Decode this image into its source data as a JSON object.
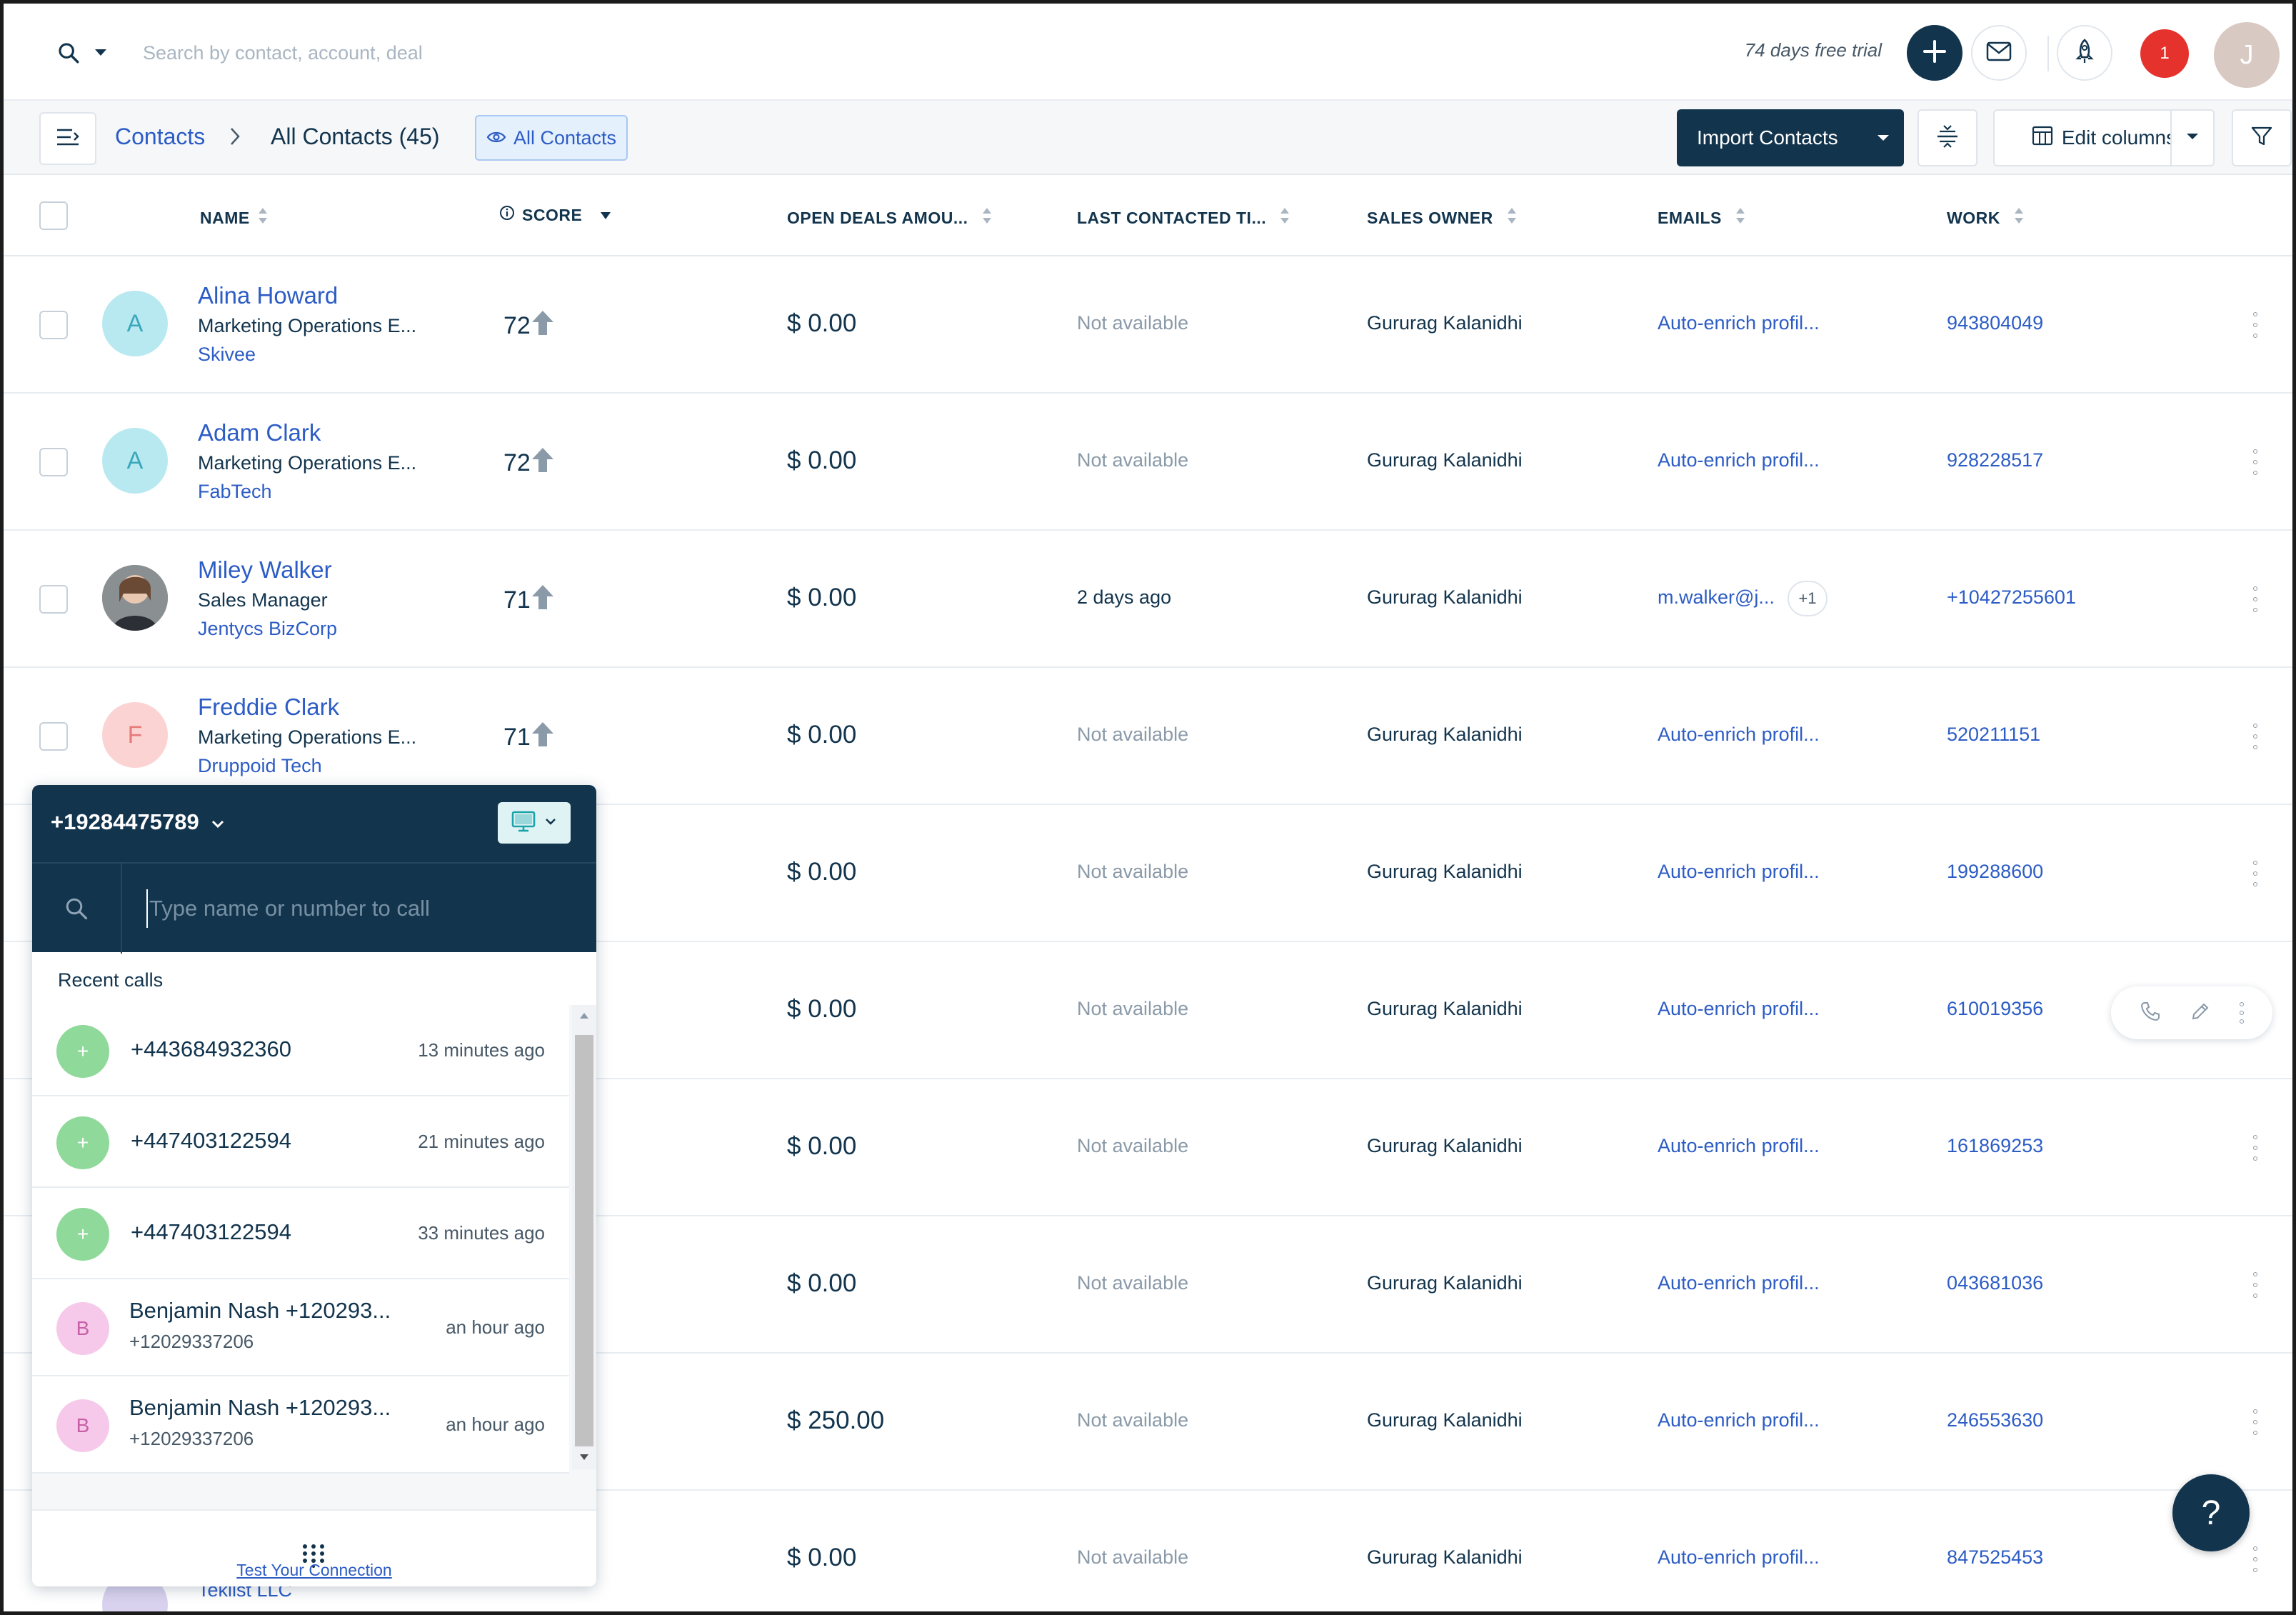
{
  "topbar": {
    "search_placeholder": "Search by contact, account, deal",
    "trial_text": "74 days free trial",
    "notification_count": "1",
    "user_initial": "J"
  },
  "toolbar": {
    "breadcrumb_root": "Contacts",
    "breadcrumb_current": "All Contacts (45)",
    "view_chip": "All Contacts",
    "import_label": "Import Contacts",
    "edit_columns_label": "Edit columns"
  },
  "table": {
    "columns": [
      "NAME",
      "SCORE",
      "OPEN DEALS AMOU...",
      "LAST CONTACTED TI...",
      "SALES OWNER",
      "EMAILS",
      "WORK"
    ],
    "rows": [
      {
        "initial": "A",
        "name": "Alina Howard",
        "title": "Marketing Operations E...",
        "company": "Skivee",
        "score": "72",
        "amount": "$ 0.00",
        "last_contacted": "Not available",
        "owner": "Gururag Kalanidhi",
        "email": "Auto-enrich profil...",
        "work": "943804049"
      },
      {
        "initial": "A",
        "name": "Adam Clark",
        "title": "Marketing Operations E...",
        "company": "FabTech",
        "score": "72",
        "amount": "$ 0.00",
        "last_contacted": "Not available",
        "owner": "Gururag Kalanidhi",
        "email": "Auto-enrich profil...",
        "work": "928228517"
      },
      {
        "initial": "",
        "name": "Miley Walker",
        "title": "Sales Manager",
        "company": "Jentycs BizCorp",
        "score": "71",
        "amount": "$ 0.00",
        "last_contacted": "2 days ago",
        "owner": "Gururag Kalanidhi",
        "email": "m.walker@j...",
        "email_extra": "+1",
        "work": "+10427255601"
      },
      {
        "initial": "F",
        "name": "Freddie Clark",
        "title": "Marketing Operations E...",
        "company": "Druppoid Tech",
        "score": "71",
        "amount": "$ 0.00",
        "last_contacted": "Not available",
        "owner": "Gururag Kalanidhi",
        "email": "Auto-enrich profil...",
        "work": "520211151"
      },
      {
        "amount": "$ 0.00",
        "last_contacted": "Not available",
        "owner": "Gururag Kalanidhi",
        "email": "Auto-enrich profil...",
        "work": "199288600"
      },
      {
        "amount": "$ 0.00",
        "last_contacted": "Not available",
        "owner": "Gururag Kalanidhi",
        "email": "Auto-enrich profil...",
        "work": "610019356"
      },
      {
        "amount": "$ 0.00",
        "last_contacted": "Not available",
        "owner": "Gururag Kalanidhi",
        "email": "Auto-enrich profil...",
        "work": "161869253"
      },
      {
        "amount": "$ 0.00",
        "last_contacted": "Not available",
        "owner": "Gururag Kalanidhi",
        "email": "Auto-enrich profil...",
        "work": "043681036"
      },
      {
        "amount": "$ 250.00",
        "last_contacted": "Not available",
        "owner": "Gururag Kalanidhi",
        "email": "Auto-enrich profil...",
        "work": "246553630"
      },
      {
        "company": "Teklist LLC",
        "amount": "$ 0.00",
        "last_contacted": "Not available",
        "owner": "Gururag Kalanidhi",
        "email": "Auto-enrich profil...",
        "work": "847525453"
      }
    ]
  },
  "phone_widget": {
    "number": "+19284475789",
    "search_placeholder": "Type name or number to call",
    "recent_label": "Recent calls",
    "calls": [
      {
        "initial": "+",
        "number": "+443684932360",
        "time": "13 minutes ago"
      },
      {
        "initial": "+",
        "number": "+447403122594",
        "time": "21 minutes ago"
      },
      {
        "initial": "+",
        "number": "+447403122594",
        "time": "33 minutes ago"
      },
      {
        "initial": "B",
        "name": "Benjamin Nash +120293...",
        "sub": "+12029337206",
        "time": "an hour ago"
      },
      {
        "initial": "B",
        "name": "Benjamin Nash +120293...",
        "sub": "+12029337206",
        "time": "an hour ago"
      }
    ],
    "test_connection": "Test Your Connection"
  },
  "help_label": "?",
  "colors": {
    "primary_navy": "#12344d",
    "link_blue": "#2c5cc5",
    "notification_red": "#e5322d",
    "call_green": "#8fd99a"
  }
}
